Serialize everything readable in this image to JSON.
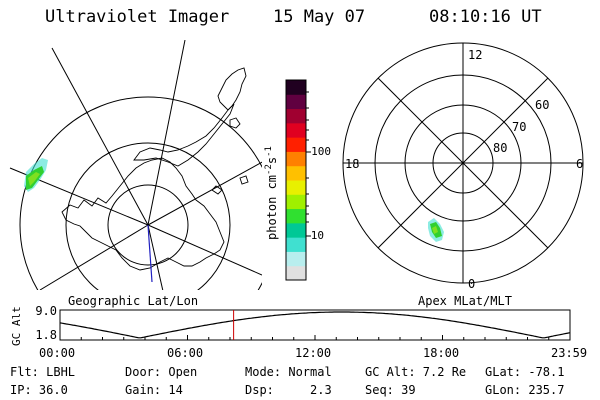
{
  "header": {
    "instrument": "Ultraviolet Imager",
    "date": "15 May 07",
    "time": "08:10:16 UT"
  },
  "left_map": {
    "label": "Geographic Lat/Lon"
  },
  "right_map": {
    "label": "Apex MLat/MLT",
    "mlt_labels": [
      "12",
      "18",
      "6",
      "0"
    ],
    "mlat_labels": [
      "60",
      "70",
      "80"
    ]
  },
  "colorbar": {
    "label": "photon cm",
    "exp1": "-2",
    "mid": "s",
    "exp2": "-1",
    "tick_labels": [
      "100",
      "10"
    ],
    "colors": [
      "#e0e0e0",
      "#b8eeee",
      "#40e0d0",
      "#00c896",
      "#30e030",
      "#a0f000",
      "#e8f000",
      "#ffc000",
      "#ff8000",
      "#ff2000",
      "#e00020",
      "#a00030",
      "#600040",
      "#200020"
    ]
  },
  "timeline": {
    "ylabel": "GC Alt",
    "y_ticks": [
      "9.0",
      "1.8"
    ],
    "x_ticks": [
      "00:00",
      "06:00",
      "12:00",
      "18:00",
      "23:59"
    ],
    "current_time_hours": 8.17
  },
  "info": {
    "row1": [
      "Flt: LBHL",
      "Door: Open",
      "Mode: Normal",
      "GC Alt: 7.2 Re",
      "GLat: -78.1"
    ],
    "row2": [
      "IP: 36.0",
      "Gain: 14",
      "Dsp:     2.3",
      "Seq: 39",
      "GLon: 235.7"
    ]
  },
  "colors": {
    "foreground": "#000000",
    "background": "#ffffff",
    "time_marker": "#cc0000",
    "meridian": "#2020c0"
  }
}
